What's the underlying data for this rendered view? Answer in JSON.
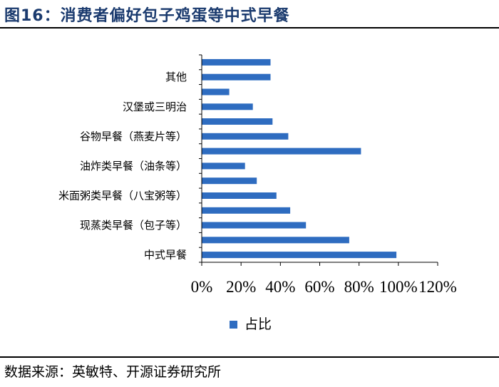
{
  "figure": {
    "title": "图16：消费者偏好包子鸡蛋等中式早餐",
    "source": "数据来源：英敏特、开源证券研究所"
  },
  "chart_data": {
    "type": "bar",
    "orientation": "horizontal",
    "categories": [
      "",
      "其他",
      "",
      "汉堡或三明治",
      "",
      "谷物早餐（燕麦片等）",
      "",
      "油炸类早餐（油条等）",
      "",
      "米面粥类早餐（八宝粥等）",
      "",
      "现蒸类早餐（包子等）",
      "",
      "中式早餐"
    ],
    "series": [
      {
        "name": "占比",
        "values": [
          35,
          35,
          14,
          26,
          36,
          44,
          81,
          22,
          28,
          38,
          45,
          53,
          75,
          99
        ]
      }
    ],
    "xlim": [
      0,
      120
    ],
    "xticks": [
      "0%",
      "20%",
      "40%",
      "60%",
      "80%",
      "100%",
      "120%"
    ],
    "color": "#2e6cc0",
    "legend": "bottom",
    "grid": false
  }
}
